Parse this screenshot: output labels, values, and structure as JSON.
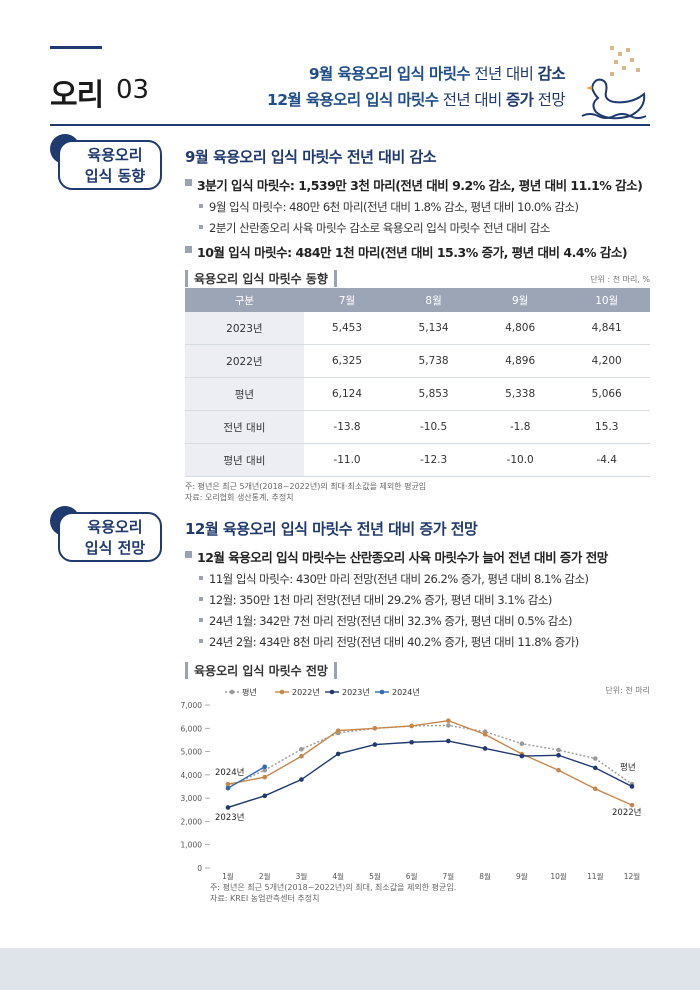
{
  "header": {
    "label": "오리",
    "number": "03",
    "title_lines": [
      [
        "9월 육용오리 입식 마릿수",
        " 전년 대비 ",
        "감소"
      ],
      [
        "12월 육용오리 입식 마릿수",
        " 전년 대비 ",
        "증가",
        " 전망"
      ]
    ]
  },
  "sections": [
    {
      "badge": [
        "육용오리",
        "입식 동향"
      ],
      "heading": "9월 육용오리 입식 마릿수 전년 대비 감소",
      "bullets": [
        {
          "text": "3분기 입식 마릿수: 1,539만 3천 마리(전년 대비 9.2% 감소, 평년 대비 11.1% 감소)",
          "sub": [
            "9월 입식 마릿수: 480만 6천 마리(전년 대비 1.8% 감소, 평년 대비 10.0% 감소)",
            "2분기 산란종오리 사육 마릿수 감소로 육용오리 입식 마릿수 전년 대비 감소"
          ]
        },
        {
          "text": "10월 입식 마릿수: 484만 1천 마리(전년 대비 15.3% 증가, 평년 대비 4.4% 감소)",
          "sub": []
        }
      ]
    },
    {
      "badge": [
        "육용오리",
        "입식 전망"
      ],
      "heading": "12월 육용오리 입식 마릿수 전년 대비 증가 전망",
      "bullets": [
        {
          "text": "12월 육용오리 입식 마릿수는 산란종오리 사육 마릿수가 늘어 전년 대비 증가 전망",
          "sub": [
            "11월 입식 마릿수: 430만 마리 전망(전년 대비 26.2% 증가, 평년 대비 8.1% 감소)",
            "12월: 350만 1천 마리 전망(전년 대비 29.2% 증가, 평년 대비 3.1% 감소)",
            "24년 1월: 342만 7천 마리 전망(전년 대비 32.3% 증가, 평년 대비 0.5% 감소)",
            "24년 2월: 434만 8천 마리 전망(전년 대비 40.2% 증가, 평년 대비 11.8% 증가)"
          ]
        }
      ]
    }
  ],
  "table": {
    "title": "육용오리 입식 마릿수 동향",
    "unit": "단위 : 천 마리, %",
    "header": [
      "구분",
      "7월",
      "8월",
      "9월",
      "10월"
    ],
    "rows": [
      [
        "2023년",
        "5,453",
        "5,134",
        "4,806",
        "4,841"
      ],
      [
        "2022년",
        "6,325",
        "5,738",
        "4,896",
        "4,200"
      ],
      [
        "평년",
        "6,124",
        "5,853",
        "5,338",
        "5,066"
      ],
      [
        "전년 대비",
        "-13.8",
        "-10.5",
        "-1.8",
        "15.3"
      ],
      [
        "평년 대비",
        "-11.0",
        "-12.3",
        "-10.0",
        "-4.4"
      ]
    ],
    "notes": [
      "주: 평년은 최근 5개년(2018~2022년)의 최대·최소값을 제외한 평균임",
      "자료: 오리협회 생산통계, 추정치"
    ]
  },
  "chart_data": {
    "type": "line",
    "title": "육용오리 입식 마릿수 전망",
    "unit": "단위: 천 마리",
    "categories": [
      "1월",
      "2월",
      "3월",
      "4월",
      "5월",
      "6월",
      "7월",
      "8월",
      "9월",
      "10월",
      "11월",
      "12월"
    ],
    "series": [
      {
        "name": "평년",
        "color": "#9a9a9a",
        "dash": "dotted",
        "values": [
          3480,
          4200,
          5100,
          5800,
          6000,
          6100,
          6124,
          5853,
          5338,
          5066,
          4700,
          3600
        ]
      },
      {
        "name": "2022년",
        "color": "#c8874a",
        "dash": "solid",
        "values": [
          3600,
          3900,
          4800,
          5900,
          6000,
          6100,
          6325,
          5738,
          4896,
          4200,
          3400,
          2700
        ]
      },
      {
        "name": "2023년",
        "color": "#1f3a6e",
        "dash": "solid",
        "values": [
          2600,
          3100,
          3800,
          4900,
          5300,
          5400,
          5453,
          5134,
          4806,
          4841,
          4300,
          3501
        ]
      },
      {
        "name": "2024년",
        "color": "#2b6cb0",
        "dash": "solid",
        "values": [
          3427,
          4348,
          null,
          null,
          null,
          null,
          null,
          null,
          null,
          null,
          null,
          null
        ]
      }
    ],
    "ylim": [
      0,
      7000
    ],
    "yticks": [
      0,
      {
        "value": 1000,
        "label": "1,000"
      },
      {
        "value": 2000,
        "label": "2,000"
      },
      {
        "value": 3000,
        "label": "3,000"
      },
      {
        "value": 4000,
        "label": "4,000"
      },
      {
        "value": 5000,
        "label": "5,000"
      },
      {
        "value": 6000,
        "label": "6,000"
      },
      {
        "value": 7000,
        "label": "7,000"
      }
    ],
    "annotations": [
      "2024년",
      "2023년",
      "평년",
      "2022년"
    ],
    "notes": [
      "주: 평년은 최근 5개년(2018~2022년)의 최대, 최소값을 제외한 평균임.",
      "자료: KREI 농업관측센터 추정치"
    ]
  }
}
